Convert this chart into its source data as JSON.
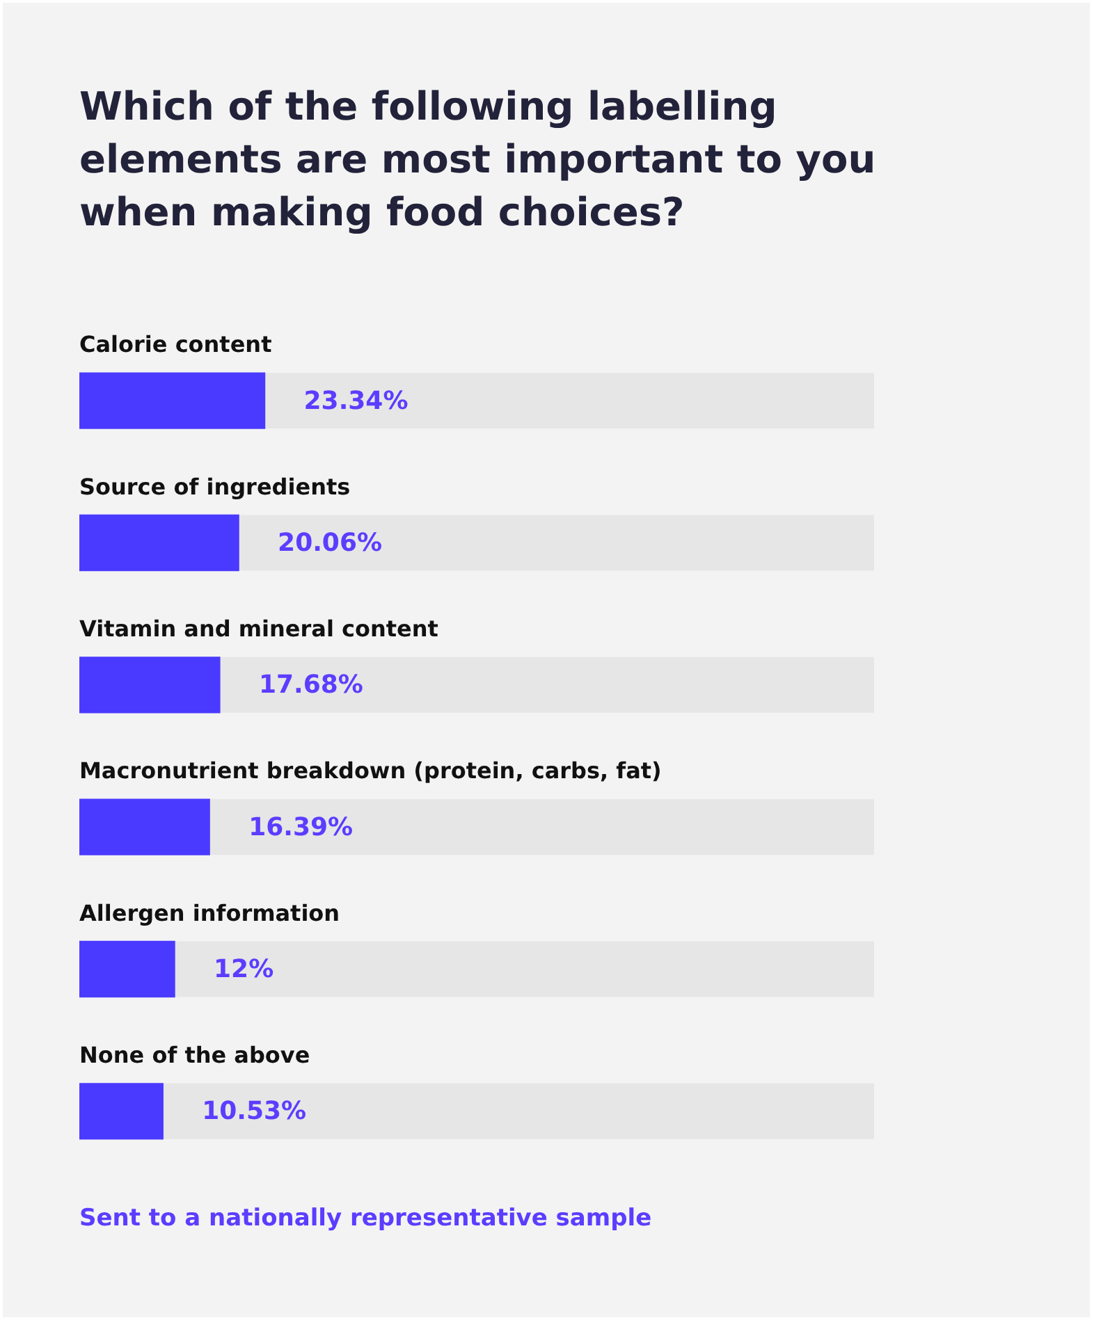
{
  "chart_data": {
    "type": "bar",
    "orientation": "horizontal",
    "title": "Which of the following labelling elements are most important to you when making food choices?",
    "categories": [
      "Calorie content",
      "Source of ingredients",
      "Vitamin and mineral content",
      "Macronutrient breakdown (protein, carbs, fat)",
      "Allergen information",
      "None of the above"
    ],
    "values": [
      23.34,
      20.06,
      17.68,
      16.39,
      12,
      10.53
    ],
    "value_labels": [
      "23.34%",
      "20.06%",
      "17.68%",
      "16.39%",
      "12%",
      "10.53%"
    ],
    "color": "#4a3aff",
    "xlim": [
      0,
      100
    ],
    "tick_labels": false,
    "annotations": [
      "Sent to a nationally representative sample"
    ]
  }
}
